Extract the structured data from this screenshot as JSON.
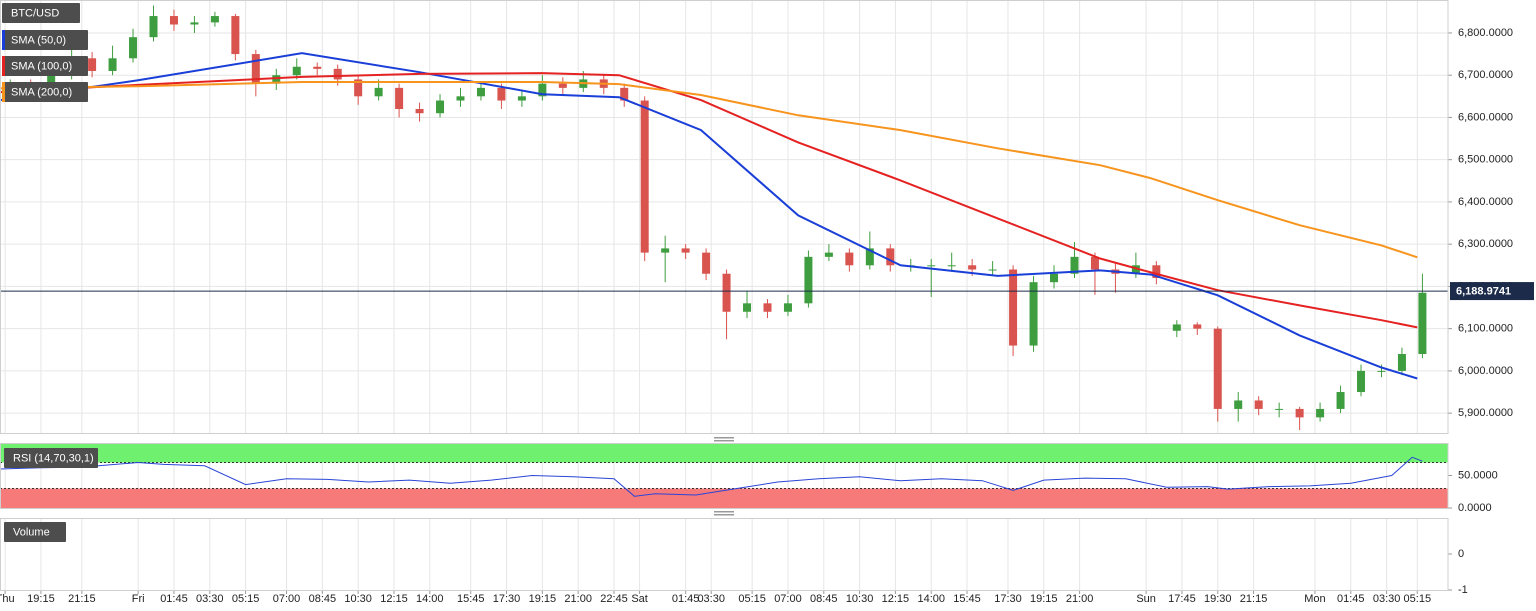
{
  "chart_data": [
    {
      "type": "candlestick",
      "title": "BTC/USD",
      "x": [
        2,
        6,
        10,
        14,
        18,
        22,
        26,
        30,
        34,
        38,
        42,
        46,
        50,
        54,
        58,
        62,
        66,
        70,
        74,
        78,
        82,
        86,
        90,
        94,
        98,
        102,
        106,
        110,
        114,
        118,
        122,
        126,
        130,
        134,
        138,
        142,
        146,
        150,
        154,
        158,
        162,
        166,
        170,
        174,
        178,
        182,
        186,
        190,
        194,
        198,
        202,
        206,
        210,
        214,
        218,
        222,
        226,
        230,
        234,
        238,
        242,
        246,
        250,
        254,
        258,
        262,
        266,
        270,
        274,
        278
      ],
      "open": [
        6660,
        6670,
        6665,
        6700,
        6740,
        6710,
        6740,
        6790,
        6840,
        6820,
        6825,
        6840,
        6750,
        6680,
        6700,
        6720,
        6715,
        6690,
        6650,
        6670,
        6620,
        6610,
        6640,
        6650,
        6670,
        6640,
        6650,
        6680,
        6670,
        6690,
        6670,
        6640,
        6280,
        6290,
        6280,
        6230,
        6140,
        6160,
        6140,
        6160,
        6270,
        6280,
        6250,
        6290,
        6250,
        6250,
        6250,
        6250,
        6240,
        6240,
        6060,
        6210,
        6230,
        6270,
        6240,
        6230,
        6250,
        6095,
        6110,
        6100,
        5910,
        5930,
        5910,
        5910,
        5890,
        5910,
        5950,
        6000,
        6000,
        6040
      ],
      "high": [
        6690,
        6690,
        6715,
        6760,
        6755,
        6770,
        6810,
        6865,
        6855,
        6840,
        6850,
        6845,
        6760,
        6715,
        6740,
        6730,
        6725,
        6700,
        6690,
        6680,
        6635,
        6655,
        6670,
        6685,
        6680,
        6665,
        6700,
        6695,
        6710,
        6700,
        6680,
        6650,
        6320,
        6300,
        6290,
        6240,
        6190,
        6170,
        6180,
        6285,
        6300,
        6290,
        6330,
        6300,
        6265,
        6265,
        6280,
        6265,
        6260,
        6250,
        6225,
        6250,
        6305,
        6280,
        6255,
        6280,
        6260,
        6120,
        6115,
        6105,
        5950,
        5940,
        5925,
        5915,
        5925,
        5965,
        6015,
        6015,
        6055,
        6230
      ],
      "low": [
        6645,
        6650,
        6655,
        6690,
        6695,
        6700,
        6730,
        6780,
        6805,
        6800,
        6815,
        6735,
        6650,
        6665,
        6690,
        6700,
        6675,
        6630,
        6640,
        6600,
        6590,
        6600,
        6625,
        6640,
        6620,
        6625,
        6640,
        6655,
        6660,
        6655,
        6625,
        6260,
        6210,
        6265,
        6215,
        6075,
        6125,
        6125,
        6130,
        6150,
        6260,
        6235,
        6240,
        6235,
        6235,
        6175,
        6235,
        6225,
        6225,
        6035,
        6045,
        6195,
        6220,
        6180,
        6185,
        6220,
        6205,
        6080,
        6085,
        5880,
        5880,
        5895,
        5890,
        5860,
        5880,
        5900,
        5940,
        5985,
        5990,
        6030
      ],
      "close": [
        6670,
        6665,
        6700,
        6740,
        6710,
        6740,
        6790,
        6840,
        6820,
        6825,
        6840,
        6750,
        6680,
        6700,
        6720,
        6715,
        6690,
        6650,
        6670,
        6620,
        6610,
        6640,
        6650,
        6670,
        6640,
        6650,
        6680,
        6670,
        6690,
        6670,
        6640,
        6280,
        6290,
        6280,
        6230,
        6140,
        6160,
        6140,
        6160,
        6270,
        6280,
        6250,
        6290,
        6250,
        6250,
        6250,
        6250,
        6240,
        6240,
        6060,
        6210,
        6230,
        6270,
        6240,
        6230,
        6250,
        6220,
        6110,
        6100,
        5910,
        5930,
        5910,
        5910,
        5890,
        5910,
        5950,
        6000,
        6000,
        6040,
        6185
      ],
      "up_color": "#3e9d3e",
      "down_color": "#d9534f",
      "series": [
        {
          "name": "SMA (50,0)",
          "color": "#1a3fd8",
          "x": [
            0,
            27,
            59,
            82,
            106,
            121,
            137,
            156,
            176,
            195,
            215,
            225,
            238,
            254,
            270,
            277
          ],
          "values": [
            6641,
            6688,
            6752,
            6707,
            6655,
            6648,
            6570,
            6368,
            6250,
            6225,
            6238,
            6228,
            6179,
            6084,
            6008,
            5982
          ]
        },
        {
          "name": "SMA (100,0)",
          "color": "#e52222",
          "x": [
            0,
            27,
            59,
            82,
            106,
            121,
            137,
            156,
            176,
            195,
            215,
            225,
            238,
            254,
            270,
            277
          ],
          "values": [
            6660,
            6677,
            6696,
            6703,
            6705,
            6700,
            6641,
            6541,
            6451,
            6361,
            6266,
            6233,
            6191,
            6155,
            6120,
            6103
          ]
        },
        {
          "name": "SMA (200,0)",
          "color": "#f7941d",
          "x": [
            0,
            27,
            59,
            82,
            106,
            121,
            137,
            156,
            176,
            195,
            215,
            225,
            238,
            254,
            270,
            277
          ],
          "values": [
            6669,
            6674,
            6684,
            6684,
            6684,
            6679,
            6653,
            6605,
            6570,
            6527,
            6487,
            6456,
            6404,
            6345,
            6297,
            6269
          ]
        }
      ],
      "last_price": {
        "value": 6188.9741,
        "label": "6,188.9741"
      },
      "xlim": [
        0,
        283
      ],
      "xticks": [
        {
          "value": 1,
          "label": "Thu"
        },
        {
          "value": 8,
          "label": "19:15"
        },
        {
          "value": 16,
          "label": "21:15"
        },
        {
          "value": 27,
          "label": "Fri"
        },
        {
          "value": 34,
          "label": "01:45"
        },
        {
          "value": 41,
          "label": "03:30"
        },
        {
          "value": 48,
          "label": "05:15"
        },
        {
          "value": 56,
          "label": "07:00"
        },
        {
          "value": 63,
          "label": "08:45"
        },
        {
          "value": 70,
          "label": "10:30"
        },
        {
          "value": 77,
          "label": "12:15"
        },
        {
          "value": 84,
          "label": "14:00"
        },
        {
          "value": 92,
          "label": "15:45"
        },
        {
          "value": 99,
          "label": "17:30"
        },
        {
          "value": 106,
          "label": "19:15"
        },
        {
          "value": 113,
          "label": "21:00"
        },
        {
          "value": 120,
          "label": "22:45"
        },
        {
          "value": 125,
          "label": "Sat"
        },
        {
          "value": 134,
          "label": "01:45"
        },
        {
          "value": 139,
          "label": "03:30"
        },
        {
          "value": 147,
          "label": "05:15"
        },
        {
          "value": 154,
          "label": "07:00"
        },
        {
          "value": 161,
          "label": "08:45"
        },
        {
          "value": 168,
          "label": "10:30"
        },
        {
          "value": 175,
          "label": "12:15"
        },
        {
          "value": 182,
          "label": "14:00"
        },
        {
          "value": 189,
          "label": "15:45"
        },
        {
          "value": 197,
          "label": "17:30"
        },
        {
          "value": 204,
          "label": "19:15"
        },
        {
          "value": 211,
          "label": "21:00"
        },
        {
          "value": 224,
          "label": "Sun"
        },
        {
          "value": 231,
          "label": "17:45"
        },
        {
          "value": 238,
          "label": "19:30"
        },
        {
          "value": 245,
          "label": "21:15"
        },
        {
          "value": 257,
          "label": "Mon"
        },
        {
          "value": 264,
          "label": "01:45"
        },
        {
          "value": 271,
          "label": "03:30"
        },
        {
          "value": 277,
          "label": "05:15"
        }
      ],
      "ylim": [
        5853,
        6878
      ],
      "yticks": [
        {
          "value": 5900,
          "label": "5,900.0000"
        },
        {
          "value": 6000,
          "label": "6,000.0000"
        },
        {
          "value": 6100,
          "label": "6,100.0000"
        },
        {
          "value": 6200,
          "label": "6,200.0000"
        },
        {
          "value": 6300,
          "label": "6,300.0000"
        },
        {
          "value": 6400,
          "label": "6,400.0000"
        },
        {
          "value": 6500,
          "label": "6,500.0000"
        },
        {
          "value": 6600,
          "label": "6,600.0000"
        },
        {
          "value": 6700,
          "label": "6,700.0000"
        },
        {
          "value": 6800,
          "label": "6,800.0000"
        }
      ],
      "grid": true
    },
    {
      "type": "rsi",
      "title": "RSI (14,70,30,1)",
      "x": [
        0,
        8,
        16,
        24,
        27,
        32,
        40,
        48,
        56,
        64,
        72,
        80,
        88,
        96,
        104,
        112,
        120,
        124,
        128,
        136,
        144,
        152,
        160,
        168,
        176,
        184,
        192,
        198,
        204,
        212,
        220,
        228,
        236,
        240,
        248,
        256,
        264,
        272,
        276,
        278
      ],
      "values": [
        60,
        62,
        63,
        68,
        70,
        67,
        65,
        36,
        45,
        44,
        40,
        43,
        38,
        43,
        50,
        48,
        45,
        18,
        22,
        20,
        30,
        40,
        45,
        48,
        42,
        45,
        42,
        27,
        43,
        46,
        45,
        32,
        33,
        29,
        33,
        34,
        38,
        50,
        78,
        72
      ],
      "color": "#2a45d6",
      "upper_band": 70,
      "lower_band": 30,
      "upper_color": "#6ff06f",
      "lower_color": "#f77a7a",
      "ylim": [
        0,
        100
      ],
      "yticks": [
        {
          "value": 50,
          "label": "50.0000"
        },
        {
          "value": 0,
          "label": "0.0000"
        }
      ],
      "grid": false
    },
    {
      "type": "volume",
      "title": "Volume",
      "ylim": [
        -1,
        1
      ],
      "yticks": [
        0,
        -1
      ],
      "grid": false
    }
  ]
}
